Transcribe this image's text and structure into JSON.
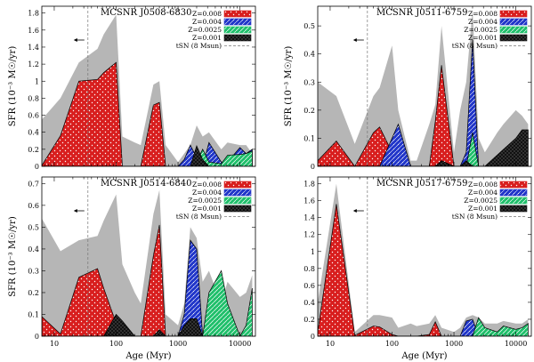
{
  "chart_data": [
    {
      "type": "area",
      "title": "MCSNR J0508-6830",
      "xlabel": "",
      "ylabel": "SFR (10⁻³ M☉/yr)",
      "xscale": "log",
      "xlim": [
        6.3,
        17800
      ],
      "ylim": [
        0,
        1.88
      ],
      "yticks": [
        0,
        0.2,
        0.4,
        0.6,
        0.8,
        1,
        1.2,
        1.4,
        1.6,
        1.8
      ],
      "ytick_labels": [
        "0",
        "0.2",
        "0.4",
        "0.6",
        "0.8",
        "1",
        "1.2",
        "1.4",
        "1.6",
        "1.8"
      ],
      "xticks": [
        10,
        100,
        1000,
        10000
      ],
      "xtick_labels": [],
      "t_sn_age_myr": 35,
      "x": [
        6.3,
        12.6,
        25,
        50,
        63,
        100,
        126,
        200,
        250,
        400,
        500,
        630,
        1000,
        1260,
        1580,
        2000,
        2500,
        3160,
        5000,
        6300,
        10000,
        12600,
        15800
      ],
      "series": [
        {
          "name": "Z=0.008",
          "values": [
            0.01,
            0.36,
            1.0,
            1.02,
            1.1,
            1.22,
            0.0,
            0.0,
            0.0,
            0.72,
            0.75,
            0.0,
            0.0,
            0.05,
            0.0,
            0.0,
            0.0,
            0.0,
            0.0,
            0.0,
            0.0,
            0.0,
            0.0
          ]
        },
        {
          "name": "Z=0.004",
          "values": [
            0,
            0,
            0,
            0,
            0,
            0,
            0,
            0,
            0,
            0,
            0,
            0,
            0,
            0.08,
            0.25,
            0.1,
            0.0,
            0.28,
            0.05,
            0.05,
            0.22,
            0.15,
            0.2
          ]
        },
        {
          "name": "Z=0.0025",
          "values": [
            0,
            0,
            0,
            0,
            0,
            0,
            0,
            0,
            0,
            0,
            0,
            0,
            0,
            0.0,
            0.0,
            0.05,
            0.2,
            0.05,
            0.03,
            0.13,
            0.14,
            0.15,
            0.18
          ]
        },
        {
          "name": "Z=0.001",
          "values": [
            0,
            0,
            0,
            0,
            0,
            0,
            0,
            0,
            0,
            0,
            0,
            0,
            0,
            0.0,
            0.0,
            0.24,
            0.08,
            0.0,
            0.0,
            0.0,
            0.0,
            0.0,
            0.0
          ]
        }
      ],
      "uncertainty": [
        0.55,
        0.8,
        1.22,
        1.38,
        1.55,
        1.78,
        0.35,
        0.28,
        0.25,
        0.96,
        1.0,
        0.25,
        0.05,
        0.15,
        0.25,
        0.48,
        0.35,
        0.4,
        0.2,
        0.28,
        0.25,
        0.25,
        0.15
      ],
      "legend": [
        "Z=0.008",
        "Z=0.004",
        "Z=0.0025",
        "Z=0.001",
        "tSN (8 Msun)"
      ],
      "legend_position": "top-right"
    },
    {
      "type": "area",
      "title": "MCSNR J0511-6759",
      "xlabel": "",
      "ylabel": "SFR (10⁻³ M☉/yr)",
      "xscale": "log",
      "xlim": [
        6.3,
        17800
      ],
      "ylim": [
        0,
        0.57
      ],
      "yticks": [
        0,
        0.1,
        0.2,
        0.3,
        0.4,
        0.5
      ],
      "ytick_labels": [
        "0",
        "0.1",
        "0.2",
        "0.3",
        "0.4",
        "0.5"
      ],
      "xticks": [
        10,
        100,
        1000,
        10000
      ],
      "xtick_labels": [],
      "t_sn_age_myr": 40,
      "x": [
        6.3,
        12.6,
        25,
        50,
        63,
        100,
        126,
        200,
        250,
        400,
        500,
        630,
        1000,
        1260,
        1580,
        2000,
        2500,
        3160,
        5000,
        6300,
        10000,
        12600,
        15800
      ],
      "series": [
        {
          "name": "Z=0.008",
          "values": [
            0.02,
            0.09,
            0.0,
            0.12,
            0.14,
            0.05,
            0.0,
            0.0,
            0.0,
            0.0,
            0.16,
            0.36,
            0.0,
            0.0,
            0.0,
            0.0,
            0.0,
            0.0,
            0.0,
            0.0,
            0.0,
            0.0,
            0.0
          ]
        },
        {
          "name": "Z=0.004",
          "values": [
            0,
            0,
            0,
            0,
            0,
            0.1,
            0.15,
            0.0,
            0.0,
            0.0,
            0.0,
            0.0,
            0.0,
            0.0,
            0.05,
            0.45,
            0.0,
            0.0,
            0.0,
            0.0,
            0.0,
            0.0,
            0.0
          ]
        },
        {
          "name": "Z=0.0025",
          "values": [
            0,
            0,
            0,
            0,
            0,
            0,
            0,
            0,
            0,
            0,
            0,
            0,
            0,
            0,
            0.0,
            0.12,
            0.0,
            0.0,
            0.0,
            0.0,
            0.0,
            0.0,
            0.0
          ]
        },
        {
          "name": "Z=0.001",
          "values": [
            0,
            0,
            0,
            0,
            0,
            0,
            0,
            0,
            0,
            0,
            0,
            0.02,
            0,
            0.0,
            0.02,
            0.0,
            0.0,
            0.0,
            0.04,
            0.06,
            0.1,
            0.13,
            0.13
          ]
        }
      ],
      "uncertainty": [
        0.3,
        0.25,
        0.08,
        0.25,
        0.28,
        0.43,
        0.2,
        0.02,
        0.02,
        0.15,
        0.22,
        0.5,
        0.05,
        0.2,
        0.3,
        0.56,
        0.1,
        0.05,
        0.12,
        0.15,
        0.2,
        0.18,
        0.15
      ],
      "legend": [
        "Z=0.008",
        "Z=0.004",
        "Z=0.0025",
        "Z=0.001",
        "tSN (8 Msun)"
      ],
      "legend_position": "top-right"
    },
    {
      "type": "area",
      "title": "MCSNR J0514-6840",
      "xlabel": "Age (Myr)",
      "ylabel": "SFR (10⁻³ M☉/yr)",
      "xscale": "log",
      "xlim": [
        6.3,
        17800
      ],
      "ylim": [
        0,
        0.73
      ],
      "yticks": [
        0,
        0.1,
        0.2,
        0.3,
        0.4,
        0.5,
        0.6,
        0.7
      ],
      "ytick_labels": [
        "0",
        "0.1",
        "0.2",
        "0.3",
        "0.4",
        "0.5",
        "0.6",
        "0.7"
      ],
      "xticks": [
        10,
        100,
        1000,
        10000
      ],
      "xtick_labels": [
        "10",
        "100",
        "1000",
        "10000"
      ],
      "t_sn_age_myr": 35,
      "x": [
        6.3,
        12.6,
        25,
        50,
        63,
        100,
        126,
        200,
        250,
        400,
        500,
        630,
        1000,
        1260,
        1580,
        2000,
        2500,
        3160,
        5000,
        6300,
        10000,
        12600,
        15800
      ],
      "series": [
        {
          "name": "Z=0.008",
          "values": [
            0.09,
            0.01,
            0.27,
            0.31,
            0.22,
            0.06,
            0.0,
            0.0,
            0.0,
            0.37,
            0.51,
            0.0,
            0.0,
            0.0,
            0.0,
            0.0,
            0.0,
            0.0,
            0.0,
            0.0,
            0.0,
            0.0,
            0.0
          ]
        },
        {
          "name": "Z=0.004",
          "values": [
            0,
            0,
            0,
            0,
            0,
            0.0,
            0.05,
            0.0,
            0.0,
            0.0,
            0.0,
            0.0,
            0.0,
            0.1,
            0.44,
            0.4,
            0.0,
            0.0,
            0.0,
            0.0,
            0.0,
            0.0,
            0.0
          ]
        },
        {
          "name": "Z=0.0025",
          "values": [
            0,
            0,
            0,
            0,
            0,
            0,
            0,
            0,
            0,
            0,
            0,
            0,
            0,
            0,
            0,
            0,
            0.0,
            0.2,
            0.3,
            0.15,
            0.0,
            0.05,
            0.22
          ]
        },
        {
          "name": "Z=0.001",
          "values": [
            0,
            0,
            0,
            0,
            0,
            0.1,
            0.07,
            0.0,
            0.0,
            0.0,
            0.03,
            0.0,
            0,
            0.05,
            0.08,
            0.08,
            0.0,
            0.0,
            0.0,
            0.0,
            0.0,
            0.0,
            0.0
          ]
        }
      ],
      "uncertainty": [
        0.54,
        0.39,
        0.44,
        0.46,
        0.53,
        0.65,
        0.33,
        0.2,
        0.15,
        0.56,
        0.67,
        0.1,
        0.05,
        0.15,
        0.5,
        0.45,
        0.25,
        0.3,
        0.15,
        0.25,
        0.18,
        0.2,
        0.28
      ],
      "legend": [
        "Z=0.008",
        "Z=0.004",
        "Z=0.0025",
        "Z=0.001",
        "tSN (8 Msun)"
      ],
      "legend_position": "top-right"
    },
    {
      "type": "area",
      "title": "MCSNR J0517-6759",
      "xlabel": "Age (Myr)",
      "ylabel": "",
      "xscale": "log",
      "xlim": [
        6.3,
        17800
      ],
      "ylim": [
        0,
        1.88
      ],
      "yticks": [
        0,
        0.2,
        0.4,
        0.6,
        0.8,
        1,
        1.2,
        1.4,
        1.6,
        1.8
      ],
      "ytick_labels": [
        "0",
        "0.2",
        "0.4",
        "0.6",
        "0.8",
        "1",
        "1.2",
        "1.4",
        "1.6",
        "1.8"
      ],
      "xticks": [
        10,
        100,
        1000,
        10000
      ],
      "xtick_labels": [
        "10",
        "100",
        "1000",
        "10000"
      ],
      "t_sn_age_myr": 40,
      "x": [
        6.3,
        12.6,
        25,
        50,
        63,
        100,
        126,
        200,
        250,
        400,
        500,
        630,
        1000,
        1260,
        1580,
        2000,
        2500,
        3160,
        5000,
        6300,
        10000,
        12600,
        15800
      ],
      "series": [
        {
          "name": "Z=0.008",
          "values": [
            0.05,
            1.56,
            0.01,
            0.12,
            0.11,
            0.02,
            0.0,
            0.0,
            0.0,
            0.02,
            0.17,
            0.0,
            0.0,
            0.0,
            0.0,
            0.0,
            0.0,
            0.0,
            0.0,
            0.0,
            0.0,
            0.0,
            0.0
          ]
        },
        {
          "name": "Z=0.004",
          "values": [
            0,
            0,
            0,
            0,
            0,
            0.0,
            0.0,
            0.0,
            0.0,
            0.0,
            0.0,
            0.0,
            0.0,
            0.0,
            0.18,
            0.2,
            0.0,
            0.0,
            0.0,
            0.0,
            0.0,
            0.0,
            0.0
          ]
        },
        {
          "name": "Z=0.0025",
          "values": [
            0,
            0,
            0,
            0,
            0,
            0,
            0,
            0,
            0,
            0,
            0,
            0,
            0,
            0,
            0,
            0,
            0.22,
            0.1,
            0.05,
            0.12,
            0.08,
            0.1,
            0.15
          ]
        },
        {
          "name": "Z=0.001",
          "values": [
            0,
            0,
            0,
            0,
            0,
            0,
            0,
            0,
            0,
            0,
            0,
            0,
            0,
            0,
            0,
            0,
            0,
            0,
            0,
            0,
            0,
            0,
            0
          ]
        }
      ],
      "uncertainty": [
        0.4,
        1.8,
        0.05,
        0.25,
        0.25,
        0.22,
        0.1,
        0.15,
        0.12,
        0.15,
        0.25,
        0.1,
        0.05,
        0.1,
        0.22,
        0.25,
        0.22,
        0.15,
        0.15,
        0.18,
        0.15,
        0.15,
        0.2
      ],
      "legend": [
        "Z=0.008",
        "Z=0.004",
        "Z=0.0025",
        "Z=0.001",
        "tSN (8 Msun)"
      ],
      "legend_position": "top-right"
    }
  ],
  "colors": {
    "z008": "#d81e1e",
    "z004": "#2035c9",
    "z0025": "#1fbf6a",
    "z001": "#111111",
    "uncertainty": "#b6b6b6",
    "tsn_line": "#777777"
  }
}
